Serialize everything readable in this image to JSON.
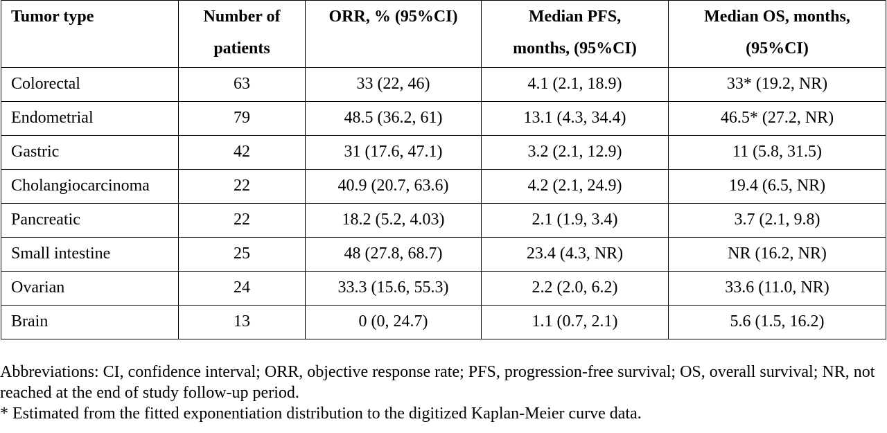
{
  "table": {
    "headers": [
      {
        "lines": [
          "Tumor type"
        ]
      },
      {
        "lines": [
          "Number of",
          "patients"
        ]
      },
      {
        "lines": [
          "ORR, % (95%CI)"
        ]
      },
      {
        "lines": [
          "Median PFS,",
          "months, (95%CI)"
        ]
      },
      {
        "lines": [
          "Median OS, months,",
          "(95%CI)"
        ]
      }
    ],
    "rows": [
      [
        "Colorectal",
        "63",
        "33 (22, 46)",
        "4.1 (2.1, 18.9)",
        "33* (19.2, NR)"
      ],
      [
        "Endometrial",
        "79",
        "48.5 (36.2, 61)",
        "13.1 (4.3, 34.4)",
        "46.5* (27.2, NR)"
      ],
      [
        "Gastric",
        "42",
        "31 (17.6, 47.1)",
        "3.2 (2.1, 12.9)",
        "11 (5.8, 31.5)"
      ],
      [
        "Cholangiocarcinoma",
        "22",
        "40.9 (20.7, 63.6)",
        "4.2 (2.1, 24.9)",
        "19.4 (6.5, NR)"
      ],
      [
        "Pancreatic",
        "22",
        "18.2 (5.2, 4.03)",
        "2.1 (1.9, 3.4)",
        "3.7 (2.1, 9.8)"
      ],
      [
        "Small intestine",
        "25",
        "48 (27.8, 68.7)",
        "23.4 (4.3, NR)",
        "NR (16.2, NR)"
      ],
      [
        "Ovarian",
        "24",
        "33.3 (15.6, 55.3)",
        "2.2 (2.0, 6.2)",
        "33.6 (11.0, NR)"
      ],
      [
        "Brain",
        "13",
        "0 (0, 24.7)",
        "1.1 (0.7, 2.1)",
        "5.6 (1.5, 16.2)"
      ]
    ]
  },
  "footnotes": {
    "abbreviations": "Abbreviations: CI, confidence interval; ORR, objective response rate; PFS, progression-free survival; OS, overall survival; NR, not reached at the end of study follow-up period.",
    "asterisk": "* Estimated from the fitted exponentiation distribution to the digitized Kaplan-Meier curve data."
  }
}
